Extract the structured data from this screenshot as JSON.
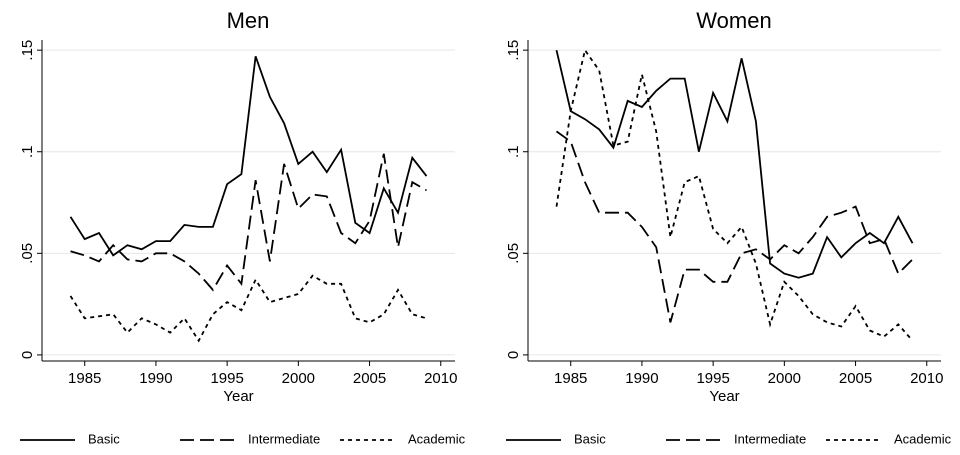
{
  "chart_data": [
    {
      "type": "line",
      "title": "Men",
      "x_label": "Year",
      "x": [
        1984,
        1985,
        1986,
        1987,
        1988,
        1989,
        1990,
        1991,
        1992,
        1993,
        1994,
        1995,
        1996,
        1997,
        1998,
        1999,
        2000,
        2001,
        2002,
        2003,
        2004,
        2005,
        2006,
        2007,
        2008,
        2009
      ],
      "series": [
        {
          "name": "Basic",
          "color": "#000000",
          "dash": "solid",
          "values": [
            0.068,
            0.057,
            0.06,
            0.049,
            0.054,
            0.052,
            0.056,
            0.056,
            0.064,
            0.063,
            0.063,
            0.084,
            0.089,
            0.147,
            0.127,
            0.114,
            0.094,
            0.1,
            0.09,
            0.101,
            0.065,
            0.06,
            0.082,
            0.07,
            0.097,
            0.088
          ]
        },
        {
          "name": "Intermediate",
          "color": "#000000",
          "dash": "dashed",
          "values": [
            0.051,
            0.049,
            0.046,
            0.054,
            0.047,
            0.046,
            0.05,
            0.05,
            0.046,
            0.04,
            0.032,
            0.044,
            0.035,
            0.086,
            0.046,
            0.094,
            0.072,
            0.079,
            0.078,
            0.06,
            0.055,
            0.066,
            0.099,
            0.053,
            0.085,
            0.081
          ]
        },
        {
          "name": "Academic",
          "color": "#000000",
          "dash": "dotted",
          "values": [
            0.029,
            0.018,
            0.019,
            0.02,
            0.011,
            0.018,
            0.015,
            0.011,
            0.018,
            0.007,
            0.02,
            0.026,
            0.022,
            0.037,
            0.026,
            0.028,
            0.03,
            0.039,
            0.035,
            0.035,
            0.018,
            0.016,
            0.02,
            0.032,
            0.02,
            0.018
          ]
        }
      ],
      "xlim": [
        1982,
        2011
      ],
      "xticks": [
        1985,
        1990,
        1995,
        2000,
        2005,
        2010
      ],
      "ylim": [
        -0.003,
        0.155
      ],
      "yticks": [
        0,
        {
          "value": 0.05,
          "label": ".05"
        },
        {
          "value": 0.1,
          "label": ".1"
        },
        {
          "value": 0.15,
          "label": ".15"
        }
      ],
      "grid": true
    },
    {
      "type": "line",
      "title": "Women",
      "x_label": "Year",
      "x": [
        1984,
        1985,
        1986,
        1987,
        1988,
        1989,
        1990,
        1991,
        1992,
        1993,
        1994,
        1995,
        1996,
        1997,
        1998,
        1999,
        2000,
        2001,
        2002,
        2003,
        2004,
        2005,
        2006,
        2007,
        2008,
        2009
      ],
      "series": [
        {
          "name": "Basic",
          "color": "#000000",
          "dash": "solid",
          "values": [
            0.15,
            0.12,
            0.116,
            0.111,
            0.102,
            0.125,
            0.122,
            0.13,
            0.136,
            0.136,
            0.1,
            0.129,
            0.115,
            0.146,
            0.115,
            0.045,
            0.04,
            0.038,
            0.04,
            0.058,
            0.048,
            0.055,
            0.06,
            0.055,
            0.068,
            0.055
          ]
        },
        {
          "name": "Intermediate",
          "color": "#000000",
          "dash": "dashed",
          "values": [
            0.11,
            0.105,
            0.085,
            0.07,
            0.07,
            0.07,
            0.063,
            0.053,
            0.016,
            0.042,
            0.042,
            0.036,
            0.036,
            0.05,
            0.052,
            0.047,
            0.054,
            0.05,
            0.058,
            0.068,
            0.07,
            0.073,
            0.055,
            0.057,
            0.04,
            0.047
          ]
        },
        {
          "name": "Academic",
          "color": "#000000",
          "dash": "dotted",
          "values": [
            0.073,
            0.12,
            0.15,
            0.14,
            0.103,
            0.105,
            0.138,
            0.11,
            0.058,
            0.085,
            0.088,
            0.062,
            0.055,
            0.063,
            0.045,
            0.015,
            0.036,
            0.029,
            0.02,
            0.016,
            0.014,
            0.024,
            0.012,
            0.009,
            0.015,
            0.007
          ]
        }
      ],
      "xlim": [
        1982,
        2011
      ],
      "xticks": [
        1985,
        1990,
        1995,
        2000,
        2005,
        2010
      ],
      "ylim": [
        -0.003,
        0.155
      ],
      "yticks": [
        0,
        {
          "value": 0.05,
          "label": ".05"
        },
        {
          "value": 0.1,
          "label": ".1"
        },
        {
          "value": 0.15,
          "label": ".15"
        }
      ],
      "grid": true
    }
  ]
}
